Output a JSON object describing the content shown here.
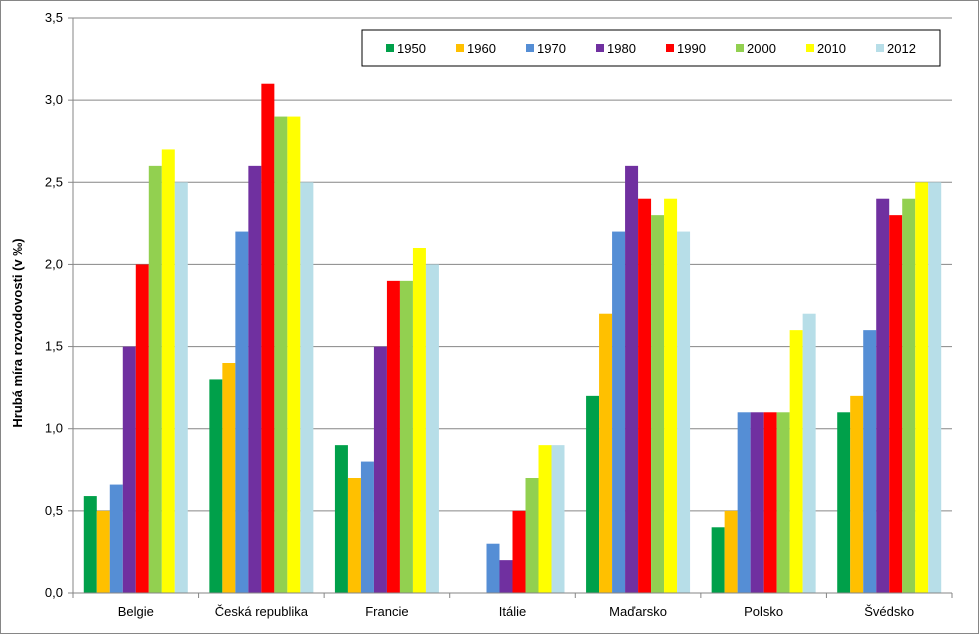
{
  "chart_data": {
    "type": "bar",
    "title": "",
    "xlabel": "",
    "ylabel": "Hrubá míra rozvodovosti (v ‰)",
    "ylim": [
      0,
      3.5
    ],
    "yticks": [
      "0,0",
      "0,5",
      "1,0",
      "1,5",
      "2,0",
      "2,5",
      "3,0",
      "3,5"
    ],
    "grid": true,
    "legend_position": "top-right",
    "categories": [
      "Belgie",
      "Česká republika",
      "Francie",
      "Itálie",
      "Maďarsko",
      "Polsko",
      "Švédsko"
    ],
    "series": [
      {
        "name": "1950",
        "color": "#00A04A",
        "values": [
          0.59,
          1.3,
          0.9,
          null,
          1.2,
          0.4,
          1.1
        ]
      },
      {
        "name": "1960",
        "color": "#FFC000",
        "values": [
          0.5,
          1.4,
          0.7,
          null,
          1.7,
          0.5,
          1.2
        ]
      },
      {
        "name": "1970",
        "color": "#558ED5",
        "values": [
          0.66,
          2.2,
          0.8,
          0.3,
          2.2,
          1.1,
          1.6
        ]
      },
      {
        "name": "1980",
        "color": "#7030A0",
        "values": [
          1.5,
          2.6,
          1.5,
          0.2,
          2.6,
          1.1,
          2.4
        ]
      },
      {
        "name": "1990",
        "color": "#FF0000",
        "values": [
          2.0,
          3.1,
          1.9,
          0.5,
          2.4,
          1.1,
          2.3
        ]
      },
      {
        "name": "2000",
        "color": "#92D050",
        "values": [
          2.6,
          2.9,
          1.9,
          0.7,
          2.3,
          1.1,
          2.4
        ]
      },
      {
        "name": "2010",
        "color": "#FFFF00",
        "values": [
          2.7,
          2.9,
          2.1,
          0.9,
          2.4,
          1.6,
          2.5
        ]
      },
      {
        "name": "2012",
        "color": "#B7DEE8",
        "values": [
          2.5,
          2.5,
          2.0,
          0.9,
          2.2,
          1.7,
          2.5
        ]
      }
    ]
  }
}
